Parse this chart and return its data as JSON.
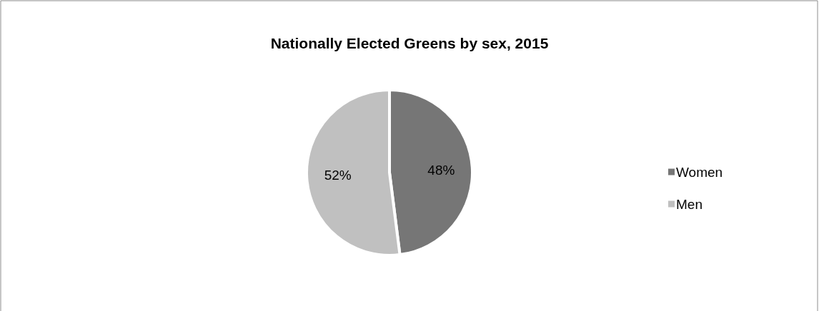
{
  "chart_data": {
    "type": "pie",
    "title": "Nationally Elected Greens by sex, 2015",
    "categories": [
      "Women",
      "Men"
    ],
    "values": [
      48,
      52
    ],
    "colors": [
      "#767676",
      "#c0c0c0"
    ],
    "value_labels": [
      "48%",
      "52%"
    ],
    "legend": "right"
  }
}
